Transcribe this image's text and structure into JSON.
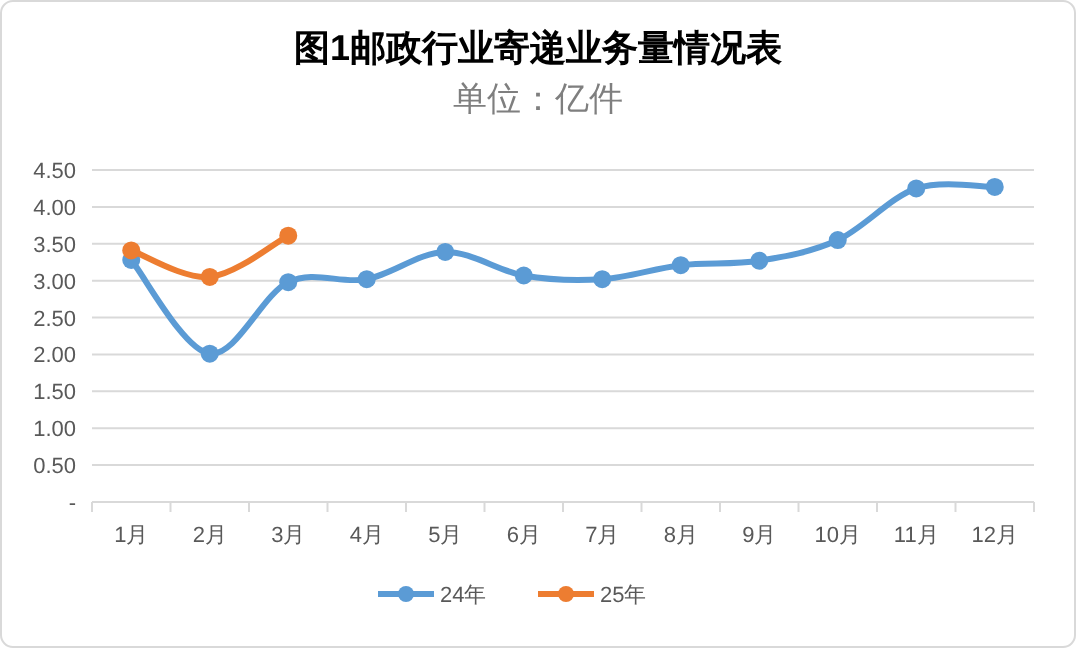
{
  "chart_data": {
    "type": "line",
    "title": "图1邮政行业寄递业务量情况表",
    "subtitle": "单位：亿件",
    "categories": [
      "1月",
      "2月",
      "3月",
      "4月",
      "5月",
      "6月",
      "7月",
      "8月",
      "9月",
      "10月",
      "11月",
      "12月"
    ],
    "series": [
      {
        "name": "24年",
        "color": "#5b9bd5",
        "values": [
          3.28,
          2.01,
          2.98,
          3.02,
          3.39,
          3.07,
          3.02,
          3.21,
          3.27,
          3.55,
          4.25,
          4.27
        ]
      },
      {
        "name": "25年",
        "color": "#ed7d31",
        "values": [
          3.41,
          3.05,
          3.61,
          null,
          null,
          null,
          null,
          null,
          null,
          null,
          null,
          null
        ]
      }
    ],
    "ylim": [
      0,
      4.5
    ],
    "yticks": [
      {
        "value": 0,
        "label": "-"
      },
      {
        "value": 0.5,
        "label": "0.50"
      },
      {
        "value": 1,
        "label": "1.00"
      },
      {
        "value": 1.5,
        "label": "1.50"
      },
      {
        "value": 2,
        "label": "2.00"
      },
      {
        "value": 2.5,
        "label": "2.50"
      },
      {
        "value": 3,
        "label": "3.00"
      },
      {
        "value": 3.5,
        "label": "3.50"
      },
      {
        "value": 4,
        "label": "4.00"
      },
      {
        "value": 4.5,
        "label": "4.50"
      }
    ],
    "grid": "y",
    "legend": "bottom",
    "marker": "circle"
  }
}
